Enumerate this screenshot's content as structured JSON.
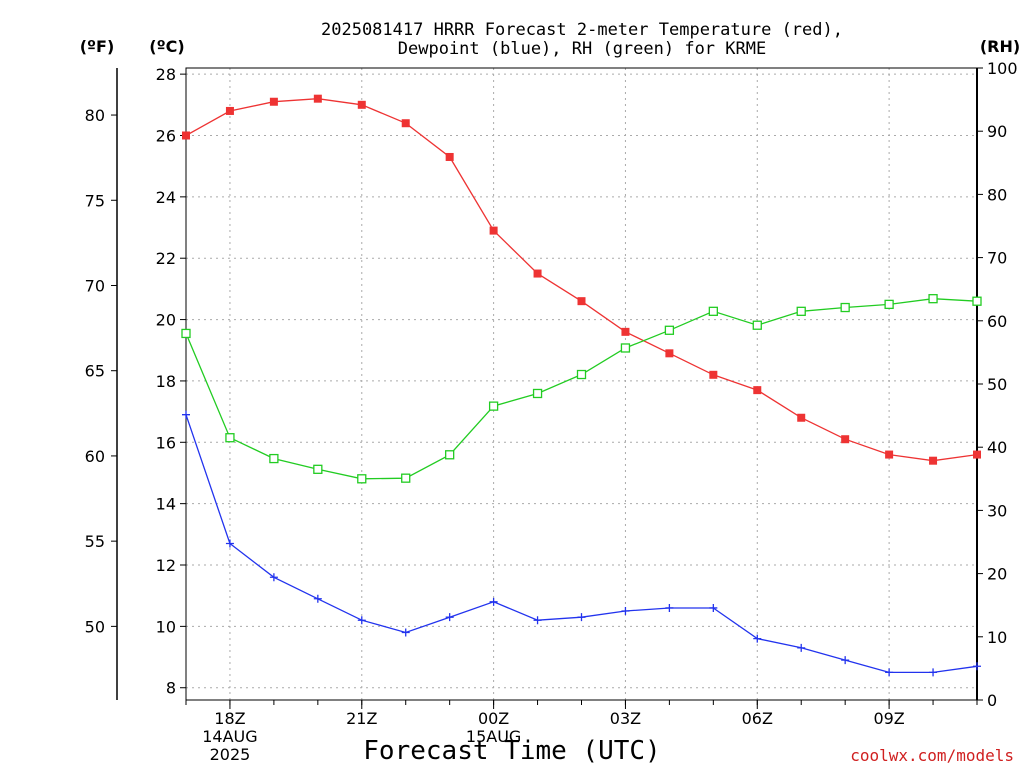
{
  "title_line1": "2025081417 HRRR Forecast 2-meter Temperature (red),",
  "title_line2": "Dewpoint (blue), RH (green) for KRME",
  "credit": "coolwx.com/models",
  "chart_data": {
    "type": "line",
    "title": "2025081417 HRRR Forecast 2-meter Temperature (red), Dewpoint (blue), RH (green) for KRME",
    "xlabel": "Forecast Time (UTC)",
    "x_hours_utc": [
      "17Z",
      "18Z",
      "19Z",
      "20Z",
      "21Z",
      "22Z",
      "23Z",
      "00Z",
      "01Z",
      "02Z",
      "03Z",
      "04Z",
      "05Z",
      "06Z",
      "07Z",
      "08Z",
      "09Z",
      "10Z",
      "11Z"
    ],
    "x_ticks": [
      {
        "label": "18Z",
        "sub1": "14AUG",
        "sub2": "2025",
        "hour": "18Z"
      },
      {
        "label": "21Z",
        "sub1": "",
        "sub2": "",
        "hour": "21Z"
      },
      {
        "label": "00Z",
        "sub1": "15AUG",
        "sub2": "",
        "hour": "00Z"
      },
      {
        "label": "03Z",
        "sub1": "",
        "sub2": "",
        "hour": "03Z"
      },
      {
        "label": "06Z",
        "sub1": "",
        "sub2": "",
        "hour": "06Z"
      },
      {
        "label": "09Z",
        "sub1": "",
        "sub2": "",
        "hour": "09Z"
      }
    ],
    "axes": {
      "celsius": {
        "label": "(ºC)",
        "ylim": [
          7.6,
          28.2
        ],
        "ticks": [
          8,
          10,
          12,
          14,
          16,
          18,
          20,
          22,
          24,
          26,
          28
        ]
      },
      "fahrenheit": {
        "label": "(ºF)",
        "ticks": [
          50,
          55,
          60,
          65,
          70,
          75,
          80
        ]
      },
      "rh": {
        "label": "(RH)",
        "ylim": [
          0,
          100
        ],
        "ticks": [
          0,
          10,
          20,
          30,
          40,
          50,
          60,
          70,
          80,
          90,
          100
        ]
      }
    },
    "grid": true,
    "series": [
      {
        "name": "2-meter Temperature",
        "color": "#ee3333",
        "marker": "filled-square",
        "axis": "celsius",
        "values": [
          26.0,
          26.8,
          27.1,
          27.2,
          27.0,
          26.4,
          25.3,
          22.9,
          21.5,
          20.6,
          19.6,
          18.9,
          18.2,
          17.7,
          16.8,
          16.1,
          15.6,
          15.4,
          15.6
        ]
      },
      {
        "name": "Dewpoint",
        "color": "#2233ee",
        "marker": "plus",
        "axis": "celsius",
        "values": [
          16.9,
          12.7,
          11.6,
          10.9,
          10.2,
          9.8,
          10.3,
          10.8,
          10.2,
          10.3,
          10.5,
          10.6,
          10.6,
          9.6,
          9.3,
          8.9,
          8.5,
          8.5,
          8.7
        ]
      },
      {
        "name": "RH",
        "color": "#22cc22",
        "marker": "open-square",
        "axis": "rh",
        "values": [
          58.0,
          41.5,
          38.2,
          36.5,
          35.0,
          35.1,
          38.8,
          46.5,
          48.5,
          51.5,
          55.7,
          58.5,
          61.5,
          59.3,
          61.5,
          62.1,
          62.6,
          63.5,
          63.1
        ]
      }
    ]
  }
}
